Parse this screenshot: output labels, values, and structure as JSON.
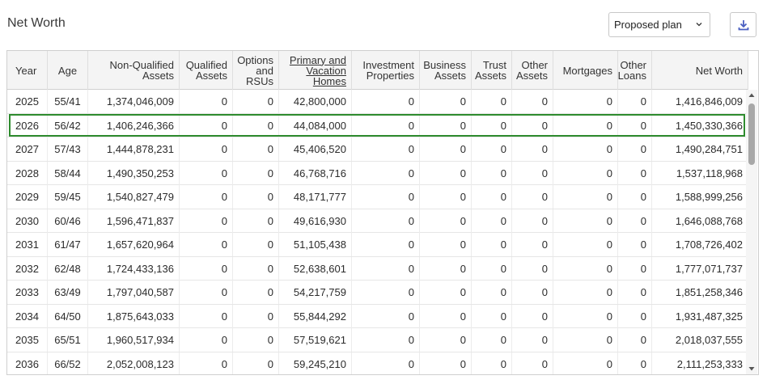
{
  "title": "Net Worth",
  "plan_select": {
    "value": "Proposed plan"
  },
  "icons": {
    "download": "download-icon",
    "select_chevron": "chevron-down-icon"
  },
  "colors": {
    "highlight": "#2e8b2e",
    "download_icon": "#4a5fc1"
  },
  "columns": [
    {
      "key": "year",
      "lines": [
        "Year"
      ]
    },
    {
      "key": "age",
      "lines": [
        "Age"
      ]
    },
    {
      "key": "nq",
      "lines": [
        "Non-Qualified",
        "Assets"
      ]
    },
    {
      "key": "qa",
      "lines": [
        "Qualified",
        "Assets"
      ]
    },
    {
      "key": "opt",
      "lines": [
        "Options",
        "and",
        "RSUs"
      ]
    },
    {
      "key": "homes",
      "lines": [
        "Primary and",
        "Vacation",
        "Homes"
      ]
    },
    {
      "key": "inv",
      "lines": [
        "Investment",
        "Properties"
      ]
    },
    {
      "key": "bus",
      "lines": [
        "Business",
        "Assets"
      ]
    },
    {
      "key": "trust",
      "lines": [
        "Trust",
        "Assets"
      ]
    },
    {
      "key": "other",
      "lines": [
        "Other",
        "Assets"
      ]
    },
    {
      "key": "mort",
      "lines": [
        "Mortgages"
      ]
    },
    {
      "key": "loans",
      "lines": [
        "Other",
        "Loans"
      ]
    },
    {
      "key": "nw",
      "lines": [
        "Net Worth"
      ]
    }
  ],
  "rows": [
    [
      "2025",
      "55/41",
      "1,374,046,009",
      "0",
      "0",
      "42,800,000",
      "0",
      "0",
      "0",
      "0",
      "0",
      "0",
      "1,416,846,009"
    ],
    [
      "2026",
      "56/42",
      "1,406,246,366",
      "0",
      "0",
      "44,084,000",
      "0",
      "0",
      "0",
      "0",
      "0",
      "0",
      "1,450,330,366"
    ],
    [
      "2027",
      "57/43",
      "1,444,878,231",
      "0",
      "0",
      "45,406,520",
      "0",
      "0",
      "0",
      "0",
      "0",
      "0",
      "1,490,284,751"
    ],
    [
      "2028",
      "58/44",
      "1,490,350,253",
      "0",
      "0",
      "46,768,716",
      "0",
      "0",
      "0",
      "0",
      "0",
      "0",
      "1,537,118,968"
    ],
    [
      "2029",
      "59/45",
      "1,540,827,479",
      "0",
      "0",
      "48,171,777",
      "0",
      "0",
      "0",
      "0",
      "0",
      "0",
      "1,588,999,256"
    ],
    [
      "2030",
      "60/46",
      "1,596,471,837",
      "0",
      "0",
      "49,616,930",
      "0",
      "0",
      "0",
      "0",
      "0",
      "0",
      "1,646,088,768"
    ],
    [
      "2031",
      "61/47",
      "1,657,620,964",
      "0",
      "0",
      "51,105,438",
      "0",
      "0",
      "0",
      "0",
      "0",
      "0",
      "1,708,726,402"
    ],
    [
      "2032",
      "62/48",
      "1,724,433,136",
      "0",
      "0",
      "52,638,601",
      "0",
      "0",
      "0",
      "0",
      "0",
      "0",
      "1,777,071,737"
    ],
    [
      "2033",
      "63/49",
      "1,797,040,587",
      "0",
      "0",
      "54,217,759",
      "0",
      "0",
      "0",
      "0",
      "0",
      "0",
      "1,851,258,346"
    ],
    [
      "2034",
      "64/50",
      "1,875,643,033",
      "0",
      "0",
      "55,844,292",
      "0",
      "0",
      "0",
      "0",
      "0",
      "0",
      "1,931,487,325"
    ],
    [
      "2035",
      "65/51",
      "1,960,517,934",
      "0",
      "0",
      "57,519,621",
      "0",
      "0",
      "0",
      "0",
      "0",
      "0",
      "2,018,037,555"
    ],
    [
      "2036",
      "66/52",
      "2,052,008,123",
      "0",
      "0",
      "59,245,210",
      "0",
      "0",
      "0",
      "0",
      "0",
      "0",
      "2,111,253,333"
    ]
  ],
  "highlighted_row": 1
}
